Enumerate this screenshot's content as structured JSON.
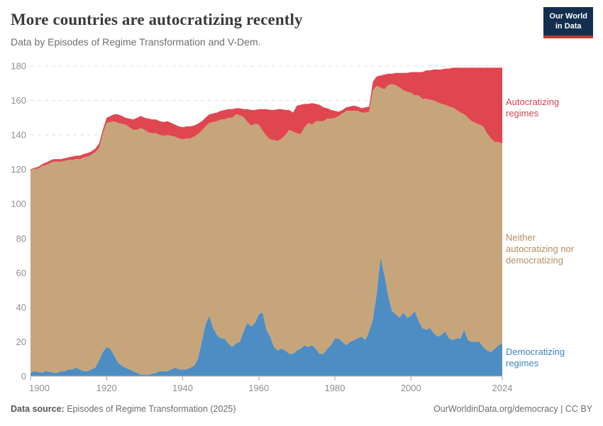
{
  "header": {
    "title": "More countries are autocratizing recently",
    "subtitle": "Data by Episodes of Regime Transformation and V-Dem.",
    "logo_line1": "Our World",
    "logo_line2": "in Data"
  },
  "series_labels": {
    "autocratizing": "Autocratizing regimes",
    "neither": "Neither autocratizing nor democratizing",
    "democratizing": "Democratizing regimes"
  },
  "footer": {
    "source_label": "Data source:",
    "source_value": " Episodes of Regime Transformation (2025)",
    "attribution": "OurWorldinData.org/democracy | CC BY"
  },
  "colors": {
    "democratizing_fill": "#4d8dc3",
    "democratizing_label": "#4084bf",
    "neither_fill": "#c6a57b",
    "neither_label": "#b68d5f",
    "autocratizing_fill": "#e04650",
    "autocratizing_label": "#d6434e",
    "logo_bg": "#12304e",
    "logo_bar": "#c0392f",
    "grid": "#dcdcdc",
    "tick_text": "#8f8f8f"
  },
  "chart_data": {
    "type": "area",
    "stacked": true,
    "title": "More countries are autocratizing recently",
    "xlabel": "",
    "ylabel": "",
    "grid": true,
    "legend_position": "right-labels",
    "ylim": [
      0,
      180
    ],
    "yticks": [
      0,
      20,
      40,
      60,
      80,
      100,
      120,
      140,
      160,
      180
    ],
    "xticks": [
      1900,
      1920,
      1940,
      1960,
      1980,
      2000,
      2024
    ],
    "x": {
      "start": 1900,
      "end": 2024,
      "step": 1
    },
    "series": [
      {
        "name": "Democratizing regimes",
        "color": "#4d8dc3",
        "values": [
          2,
          3,
          2.5,
          2,
          3,
          2.5,
          2,
          2,
          3,
          3,
          4,
          4,
          5,
          4,
          3,
          3,
          4,
          5,
          9,
          14,
          17,
          16,
          12,
          8,
          6,
          5,
          4,
          3,
          2,
          1,
          1,
          1,
          1.5,
          2,
          3,
          3,
          3,
          4,
          5,
          4,
          4,
          4,
          5,
          6,
          10,
          20,
          30,
          35,
          28,
          24,
          22,
          22,
          19,
          17,
          19,
          20,
          26,
          31,
          29,
          31,
          36,
          37,
          27,
          23,
          17,
          15,
          16,
          15,
          13,
          13,
          15,
          16,
          18,
          17,
          18,
          16,
          13,
          13,
          16,
          18,
          22,
          22,
          20,
          18,
          20,
          21,
          22,
          23,
          21,
          26,
          33,
          48,
          69,
          59,
          47,
          38,
          36,
          34,
          37,
          34,
          35,
          38,
          32,
          28,
          27,
          28,
          25,
          23,
          24,
          26,
          22,
          21,
          22,
          22,
          27,
          21,
          20,
          20,
          20,
          17,
          15,
          14,
          16,
          18,
          19
        ]
      },
      {
        "name": "Neither autocratizing nor democratizing",
        "color": "#c6a57b",
        "values": [
          117.5,
          117.5,
          118,
          120,
          119.5,
          121,
          122.5,
          122.5,
          121.5,
          122,
          121.5,
          121.5,
          121,
          122,
          124,
          124.5,
          124.5,
          125,
          123.5,
          126.5,
          130,
          131.5,
          136,
          139,
          140.5,
          141,
          140.5,
          140,
          141,
          143,
          142,
          140.5,
          139.5,
          139,
          137,
          136.5,
          137,
          135.5,
          134,
          134,
          133.5,
          134,
          133,
          133,
          130.5,
          122.5,
          115,
          112,
          119.5,
          124,
          127,
          127,
          131,
          133,
          133,
          131.5,
          124.5,
          116.5,
          116.5,
          115.5,
          110,
          105.5,
          112.5,
          114.5,
          120,
          121.5,
          122,
          125,
          130,
          129,
          126,
          124.5,
          126.5,
          130,
          128,
          132,
          135,
          135,
          133.5,
          131.5,
          128,
          129,
          132.5,
          136,
          134,
          133,
          132,
          130,
          132,
          127.5,
          133,
          120.5,
          98.5,
          107.5,
          122,
          131.5,
          133,
          133.5,
          129,
          131,
          129.5,
          125,
          131,
          133,
          134,
          132.5,
          135,
          136,
          134,
          131.5,
          134.5,
          135,
          132.5,
          131,
          125,
          129,
          128,
          127,
          126,
          128,
          126,
          124,
          120,
          118,
          116
        ]
      },
      {
        "name": "Autocratizing regimes",
        "color": "#e04650",
        "values": [
          0.5,
          0.5,
          1,
          1,
          1.5,
          1.5,
          1.5,
          1.5,
          1.5,
          1.5,
          1.5,
          2,
          2,
          2,
          2,
          2,
          2,
          2,
          2.5,
          2.5,
          3,
          3.5,
          4,
          5,
          4.5,
          4,
          5,
          6,
          7,
          7,
          7,
          8,
          8,
          8,
          8,
          8,
          8,
          7.5,
          7,
          7,
          7,
          7,
          7,
          6.5,
          6,
          5.5,
          5,
          5,
          5,
          5,
          5,
          5.5,
          5,
          5,
          3.5,
          4,
          4.5,
          7.5,
          9,
          8,
          9,
          12.5,
          15.5,
          17,
          17.5,
          18.5,
          17,
          14.5,
          11.5,
          11,
          16,
          17,
          13.5,
          11,
          12.5,
          10,
          9.5,
          8,
          6,
          5,
          4,
          2.5,
          2,
          2,
          2.5,
          3,
          2.5,
          2.5,
          3,
          3,
          5,
          5.5,
          7,
          8.5,
          6.5,
          6,
          7,
          8.5,
          10,
          11,
          12,
          13.5,
          13.5,
          15.5,
          16.5,
          17,
          18,
          19,
          20,
          21,
          22,
          23,
          24.5,
          26,
          27,
          29,
          31,
          32,
          33,
          34,
          38,
          41,
          43,
          43,
          44
        ]
      }
    ],
    "total_countries": [
      120,
      121,
      121.5,
      123,
      124,
      125,
      126,
      126,
      126,
      126.5,
      127,
      127.5,
      128,
      128,
      129,
      129.5,
      130.5,
      132,
      135,
      143,
      150,
      151,
      152,
      152,
      151,
      150,
      149.5,
      149,
      150,
      151,
      150,
      149.5,
      149,
      149,
      148,
      147.5,
      148,
      147,
      146,
      145,
      144.5,
      145,
      145,
      145.5,
      146.5,
      148,
      150,
      152,
      152.5,
      153,
      154,
      154.5,
      155,
      155,
      155.5,
      155.5,
      155,
      155,
      154.5,
      154.5,
      155,
      155,
      155,
      154.5,
      154.5,
      155,
      155,
      154.5,
      154.5,
      153,
      157,
      157.5,
      158,
      158,
      158.5,
      158,
      157.5,
      156,
      155.5,
      154.5,
      154,
      153.5,
      154.5,
      156,
      156.5,
      157,
      156.5,
      155.5,
      156,
      156.5,
      171,
      174,
      174.5,
      175,
      175.5,
      175.5,
      176,
      176,
      176,
      176,
      176.5,
      176.5,
      176.5,
      176.5,
      177.5,
      177.5,
      178,
      178,
      178,
      178.5,
      178.5,
      179,
      179,
      179,
      179,
      179,
      179,
      179,
      179,
      179,
      179,
      179,
      179,
      179,
      179
    ]
  }
}
